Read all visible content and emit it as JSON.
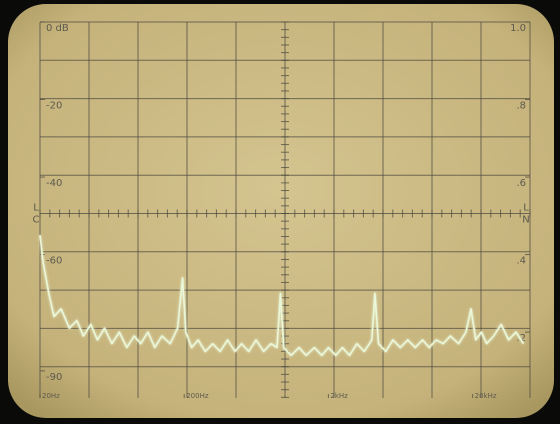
{
  "chart_data": {
    "type": "line",
    "x": [
      20,
      21,
      23,
      25,
      28,
      32,
      36,
      40,
      45,
      50,
      56,
      63,
      71,
      80,
      90,
      100,
      112,
      125,
      140,
      160,
      180,
      195,
      205,
      225,
      250,
      280,
      315,
      355,
      400,
      450,
      500,
      560,
      630,
      710,
      800,
      880,
      930,
      980,
      1100,
      1250,
      1400,
      1600,
      1800,
      2000,
      2250,
      2500,
      2800,
      3150,
      3550,
      4000,
      4200,
      4450,
      5000,
      5600,
      6300,
      7100,
      8000,
      9000,
      10000,
      11200,
      12500,
      14000,
      16000,
      18000,
      19500,
      21000,
      23000,
      25000,
      28000,
      31500,
      35500,
      40000,
      45000
    ],
    "series": [
      {
        "color": "#eaf7d8",
        "values": [
          -55,
          -62,
          -70,
          -76,
          -74,
          -79,
          -77,
          -81,
          -78,
          -82,
          -79,
          -83,
          -80,
          -84,
          -81,
          -83,
          -80,
          -84,
          -81,
          -83,
          -79,
          -66,
          -80,
          -84,
          -82,
          -85,
          -83,
          -85,
          -82,
          -85,
          -83,
          -85,
          -82,
          -85,
          -83,
          -84,
          -70,
          -84,
          -86,
          -84,
          -86,
          -84,
          -86,
          -84,
          -86,
          -84,
          -86,
          -83,
          -85,
          -82,
          -70,
          -83,
          -85,
          -82,
          -84,
          -82,
          -84,
          -82,
          -84,
          -82,
          -83,
          -81,
          -83,
          -80,
          -74,
          -82,
          -80,
          -83,
          -81,
          -78,
          -82,
          -80,
          -83
        ]
      }
    ],
    "xlim": [
      20,
      50000
    ],
    "xscale": "log",
    "xticks": [
      {
        "value": 20,
        "label": "20Hz"
      },
      {
        "value": 200,
        "label": "200Hz"
      },
      {
        "value": 2000,
        "label": "2kHz"
      },
      {
        "value": 20000,
        "label": "20kHz"
      }
    ],
    "ylim": [
      -97,
      0
    ],
    "yticks": [
      {
        "value": 0,
        "label": "0 dB"
      },
      -20,
      -40,
      -60,
      -90
    ],
    "y2lim": [
      0.03,
      1.0
    ],
    "y2ticks": [
      {
        "value": 1.0,
        "label": "1.0"
      },
      {
        "value": 0.8,
        "label": ".8"
      },
      {
        "value": 0.6,
        "label": ".6"
      },
      {
        "value": 0.4,
        "label": ".4"
      },
      {
        "value": 0.2,
        "label": ".2"
      }
    ],
    "left_markers": [
      "L",
      "C"
    ],
    "right_markers": [
      "L",
      "N"
    ]
  }
}
